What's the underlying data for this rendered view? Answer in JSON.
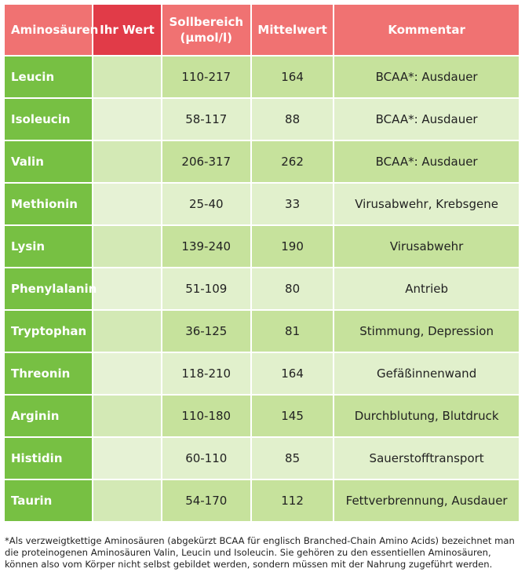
{
  "table": {
    "headers": {
      "aminosaeuren": "Aminosäuren",
      "ihr_wert": "Ihr Wert",
      "sollbereich_line1": "Sollbereich",
      "sollbereich_line2": "(µmol/l)",
      "mittelwert": "Mittelwert",
      "kommentar": "Kommentar"
    },
    "rows": [
      {
        "name": "Leucin",
        "ihr_wert": "",
        "soll": "110-217",
        "mittel": "164",
        "kommentar": "BCAA*: Ausdauer"
      },
      {
        "name": "Isoleucin",
        "ihr_wert": "",
        "soll": "58-117",
        "mittel": "88",
        "kommentar": "BCAA*: Ausdauer"
      },
      {
        "name": "Valin",
        "ihr_wert": "",
        "soll": "206-317",
        "mittel": "262",
        "kommentar": "BCAA*: Ausdauer"
      },
      {
        "name": "Methionin",
        "ihr_wert": "",
        "soll": "25-40",
        "mittel": "33",
        "kommentar": "Virusabwehr, Krebsgene"
      },
      {
        "name": "Lysin",
        "ihr_wert": "",
        "soll": "139-240",
        "mittel": "190",
        "kommentar": "Virusabwehr"
      },
      {
        "name": "Phenylalanin",
        "ihr_wert": "",
        "soll": "51-109",
        "mittel": "80",
        "kommentar": "Antrieb"
      },
      {
        "name": "Tryptophan",
        "ihr_wert": "",
        "soll": "36-125",
        "mittel": "81",
        "kommentar": "Stimmung, Depression"
      },
      {
        "name": "Threonin",
        "ihr_wert": "",
        "soll": "118-210",
        "mittel": "164",
        "kommentar": "Gefäßinnenwand"
      },
      {
        "name": "Arginin",
        "ihr_wert": "",
        "soll": "110-180",
        "mittel": "145",
        "kommentar": "Durchblutung, Blutdruck"
      },
      {
        "name": "Histidin",
        "ihr_wert": "",
        "soll": "60-110",
        "mittel": "85",
        "kommentar": "Sauerstofftransport"
      },
      {
        "name": "Taurin",
        "ihr_wert": "",
        "soll": "54-170",
        "mittel": "112",
        "kommentar": "Fettverbrennung, Ausdauer"
      }
    ]
  },
  "footnote": "*Als verzweigtkettige Aminosäuren (abgekürzt BCAA für englisch Branched-Chain Amino Acids) bezeichnet man die proteinogenen Aminosäuren Valin, Leucin und Isoleucin. Sie gehören zu den essentiellen Aminosäuren, können also vom Körper nicht selbst gebildet werden, sondern müssen mit der Nahrung zugeführt werden.",
  "colors": {
    "header": "#f07272",
    "header_accent": "#e13b48",
    "name_column": "#77c043",
    "row_dark": "#c6e29c",
    "row_light": "#e1f0cc"
  }
}
